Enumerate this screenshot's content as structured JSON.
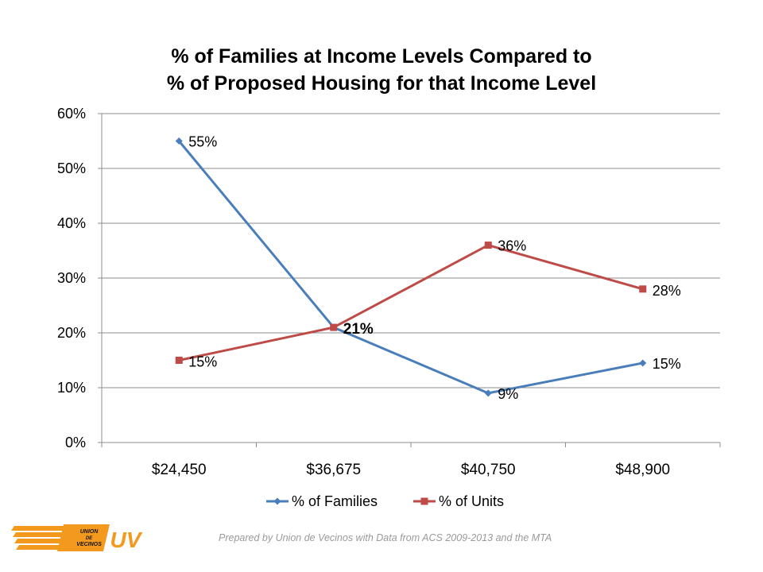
{
  "chart_data": {
    "type": "line",
    "title": [
      "% of Families at Income Levels Compared to",
      "% of Proposed Housing for that Income Level"
    ],
    "categories": [
      "$24,450",
      "$36,675",
      "$40,750",
      "$48,900"
    ],
    "ylim": [
      0,
      60
    ],
    "yticks": [
      0,
      10,
      20,
      30,
      40,
      50,
      60
    ],
    "ytick_labels": [
      "0%",
      "10%",
      "20%",
      "30%",
      "40%",
      "50%",
      "60%"
    ],
    "grid": true,
    "legend_position": "bottom",
    "series": [
      {
        "name": "% of Families",
        "values": [
          55,
          21,
          9,
          14.5
        ],
        "labels": [
          "55%",
          "",
          "9%",
          "15%"
        ],
        "color": "#4a7ebb",
        "marker": "diamond"
      },
      {
        "name": "% of Units",
        "values": [
          15,
          21,
          36,
          28
        ],
        "labels": [
          "15%",
          "21%",
          "36%",
          "28%"
        ],
        "color": "#be4b48",
        "marker": "square"
      }
    ]
  },
  "footer": {
    "note": "Prepared by Union de Vecinos with Data from ACS 2009-2013 and the MTA",
    "logo_text": [
      "UNION",
      "DE",
      "VECINOS"
    ],
    "logo_mark": "UV",
    "logo_color": "#f39a1e"
  }
}
